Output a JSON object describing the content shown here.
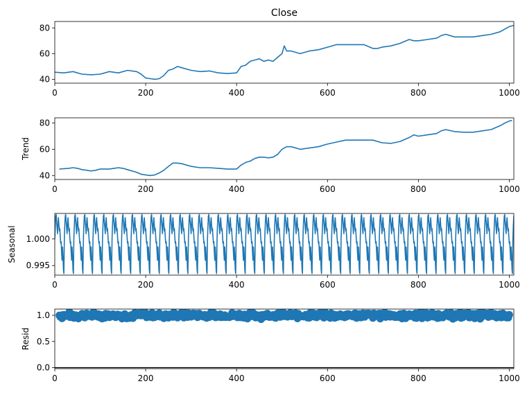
{
  "figure": {
    "title": "Close"
  },
  "chart_data": [
    {
      "type": "line",
      "title": "Close",
      "ylabel": "",
      "xlim": [
        0,
        1010
      ],
      "ylim": [
        37,
        85
      ],
      "xticks": [
        0,
        200,
        400,
        600,
        800,
        1000
      ],
      "yticks": [
        40,
        60,
        80
      ],
      "ytick_labels": [
        "40",
        "60",
        "80"
      ],
      "color": "#1f77b4",
      "x": [
        0,
        20,
        40,
        60,
        80,
        100,
        120,
        140,
        160,
        180,
        190,
        200,
        210,
        220,
        230,
        240,
        250,
        260,
        270,
        280,
        300,
        320,
        340,
        360,
        380,
        400,
        410,
        420,
        430,
        440,
        450,
        460,
        470,
        480,
        490,
        500,
        505,
        510,
        520,
        540,
        560,
        580,
        600,
        620,
        640,
        660,
        680,
        700,
        710,
        720,
        740,
        760,
        780,
        790,
        800,
        820,
        840,
        850,
        860,
        880,
        900,
        920,
        940,
        960,
        980,
        990,
        1000,
        1010
      ],
      "y": [
        45.5,
        45,
        46,
        44,
        43.5,
        44,
        46,
        45,
        47,
        46,
        44,
        41,
        40.5,
        40,
        40.5,
        43,
        47,
        48,
        50,
        49,
        47,
        46,
        46.5,
        45,
        44.5,
        45,
        50,
        51,
        54,
        55,
        56,
        54,
        55,
        54,
        57,
        60,
        66,
        62,
        62,
        60,
        62,
        63,
        65,
        67,
        67,
        67,
        67,
        64,
        64,
        65,
        66,
        68,
        71,
        70,
        70,
        71,
        72,
        74,
        75,
        73,
        73,
        73,
        74,
        75,
        77,
        79,
        81,
        82
      ]
    },
    {
      "type": "line",
      "title": "",
      "ylabel": "Trend",
      "xlim": [
        0,
        1010
      ],
      "ylim": [
        37,
        84
      ],
      "xticks": [
        0,
        200,
        400,
        600,
        800,
        1000
      ],
      "yticks": [
        40,
        60,
        80
      ],
      "ytick_labels": [
        "40",
        "60",
        "80"
      ],
      "color": "#1f77b4",
      "x": [
        10,
        30,
        40,
        50,
        60,
        70,
        80,
        90,
        100,
        120,
        130,
        140,
        150,
        160,
        180,
        190,
        200,
        210,
        220,
        230,
        240,
        250,
        260,
        270,
        280,
        300,
        320,
        340,
        360,
        380,
        400,
        410,
        420,
        430,
        440,
        450,
        460,
        470,
        480,
        490,
        500,
        510,
        520,
        540,
        560,
        580,
        600,
        620,
        640,
        660,
        680,
        700,
        720,
        740,
        760,
        780,
        790,
        800,
        820,
        840,
        850,
        860,
        880,
        900,
        920,
        940,
        960,
        980,
        990,
        1000,
        1006
      ],
      "y": [
        45,
        45.5,
        46,
        45.5,
        44.5,
        44,
        43.5,
        44,
        45,
        45,
        45.5,
        46,
        45.5,
        44.5,
        42.5,
        41,
        40.5,
        40,
        40.5,
        42,
        44,
        47,
        49.5,
        49.5,
        49,
        47,
        46,
        46,
        45.5,
        45,
        45,
        48,
        50,
        51,
        53,
        54,
        54,
        53.5,
        54,
        56,
        60,
        62,
        62,
        60,
        61,
        62,
        64,
        65.5,
        67,
        67,
        67,
        67,
        65,
        64.5,
        66,
        69,
        71,
        70,
        71,
        72,
        74,
        75,
        73.5,
        73,
        73,
        74,
        75,
        78,
        80,
        81.5,
        82
      ]
    },
    {
      "type": "line",
      "title": "",
      "ylabel": "Seasonal",
      "xlim": [
        0,
        1010
      ],
      "ylim": [
        0.9932,
        1.0048
      ],
      "xticks": [
        0,
        200,
        400,
        600,
        800,
        1000
      ],
      "yticks": [
        0.995,
        1.0
      ],
      "ytick_labels": [
        "0.995",
        "1.000"
      ],
      "color": "#1f77b4",
      "period": 21,
      "pattern": [
        1.0,
        1.0025,
        1.0043,
        1.0046,
        1.0033,
        1.0022,
        1.001,
        1.0028,
        1.004,
        1.0027,
        1.0015,
        1.002,
        1.0005,
        0.9992,
        0.9995,
        0.9975,
        0.996,
        0.9985,
        0.9968,
        0.9942,
        0.9935
      ]
    },
    {
      "type": "scatter",
      "title": "",
      "ylabel": "Resid",
      "xlim": [
        0,
        1010
      ],
      "ylim": [
        -0.02,
        1.12
      ],
      "xticks": [
        0,
        200,
        400,
        600,
        800,
        1000
      ],
      "yticks": [
        0.0,
        0.5,
        1.0
      ],
      "ytick_labels": [
        "0.0",
        "0.5",
        "1.0"
      ],
      "color": "#1f77b4",
      "baseline": 0,
      "x_start": 10,
      "x_end": 1000,
      "center": 1.0,
      "spread": 0.05
    }
  ]
}
